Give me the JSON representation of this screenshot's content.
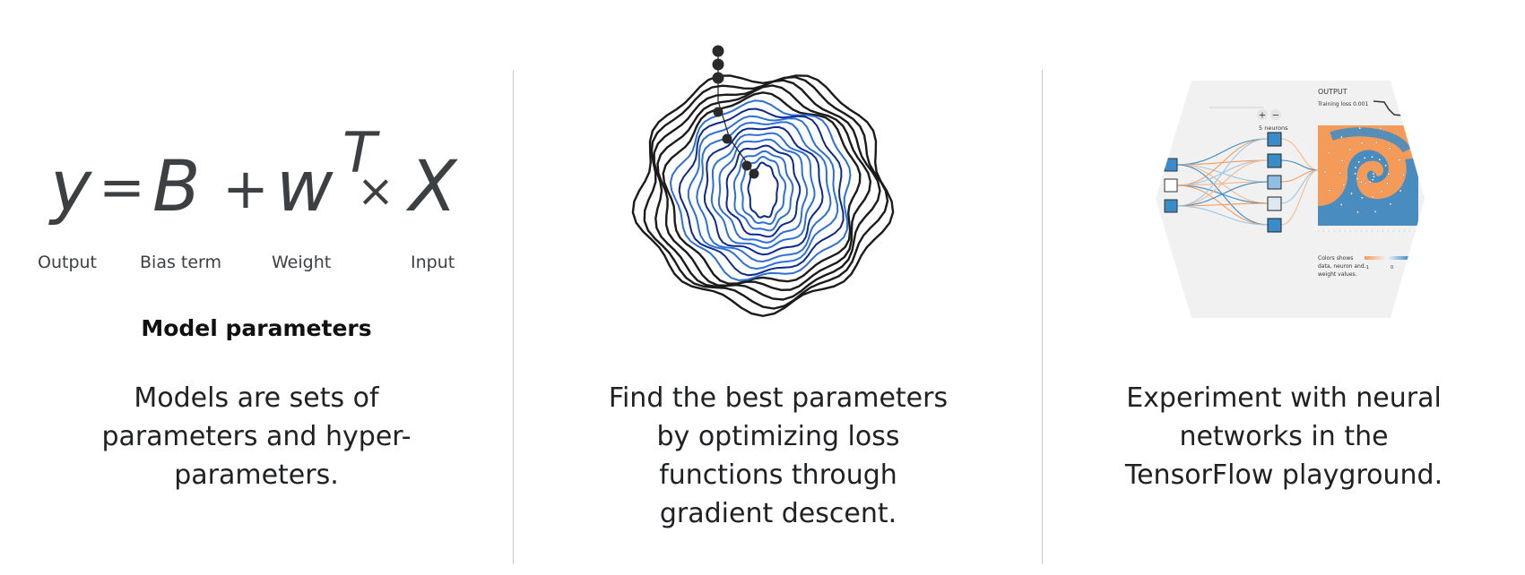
{
  "panel_model": {
    "formula": {
      "y": "y",
      "eq": "=",
      "b": "B",
      "plus": "+",
      "w": "w",
      "sup": "T",
      "times": "×",
      "x": "X"
    },
    "labels": {
      "output": "Output",
      "bias": "Bias term",
      "weight": "Weight",
      "input": "Input"
    },
    "subtitle": "Model parameters",
    "caption_lines": [
      "Models are sets of",
      "parameters and hyper-",
      "parameters."
    ]
  },
  "panel_descent": {
    "caption_lines": [
      "Find the best parameters",
      "by optimizing loss",
      "functions through",
      "gradient descent."
    ],
    "contour_colors": {
      "outer": "#1b1b1b",
      "inner": "#2d6fd6",
      "deep": "#0d2a8a"
    }
  },
  "panel_playground": {
    "output_title": "OUTPUT",
    "training_loss": "Training loss 0.001",
    "neurons": "5 neurons",
    "plus_icon": "+",
    "minus_icon": "−",
    "colors_note": [
      "Colors shows",
      "data, neuron and",
      "weight values."
    ],
    "scale_min": "-1",
    "scale_max": "0",
    "colors": {
      "orange": "#f59b5a",
      "blue": "#3a8cc9",
      "background": "#f1f1f1"
    }
  },
  "caption_playground_lines": [
    "Experiment with neural",
    "networks in the",
    "TensorFlow playground."
  ]
}
